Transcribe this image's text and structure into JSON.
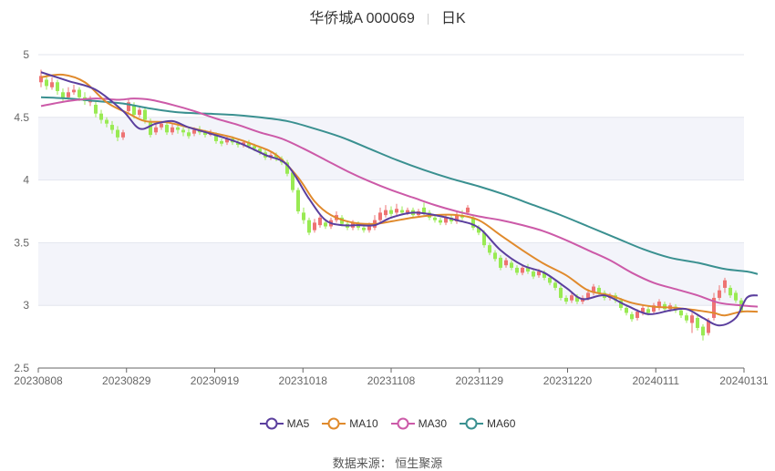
{
  "header": {
    "stock": "华侨城A 000069",
    "period": "日K"
  },
  "source": "数据来源： 恒生聚源",
  "chart_data": {
    "type": "candlestick",
    "y_ticks": [
      "5",
      "4.5",
      "4",
      "3.5",
      "3",
      "2.5"
    ],
    "ylim": [
      2.5,
      5
    ],
    "x_ticks": [
      "20230808",
      "20230829",
      "20230919",
      "20231018",
      "20231108",
      "20231129",
      "20231220",
      "20240111",
      "20240131"
    ],
    "legend": [
      {
        "name": "MA5",
        "color": "#5b3f9e"
      },
      {
        "name": "MA10",
        "color": "#e08a2c"
      },
      {
        "name": "MA30",
        "color": "#cc5aa8"
      },
      {
        "name": "MA60",
        "color": "#3a9090"
      }
    ],
    "candles": [
      [
        4.78,
        4.83,
        4.88,
        4.74
      ],
      [
        4.8,
        4.75,
        4.84,
        4.72
      ],
      [
        4.74,
        4.78,
        4.82,
        4.72
      ],
      [
        4.78,
        4.71,
        4.8,
        4.68
      ],
      [
        4.7,
        4.65,
        4.73,
        4.62
      ],
      [
        4.66,
        4.7,
        4.74,
        4.64
      ],
      [
        4.7,
        4.72,
        4.76,
        4.68
      ],
      [
        4.72,
        4.66,
        4.74,
        4.63
      ],
      [
        4.66,
        4.63,
        4.7,
        4.6
      ],
      [
        4.62,
        4.64,
        4.67,
        4.59
      ],
      [
        4.6,
        4.53,
        4.63,
        4.5
      ],
      [
        4.53,
        4.48,
        4.56,
        4.45
      ],
      [
        4.48,
        4.45,
        4.5,
        4.42
      ],
      [
        4.44,
        4.4,
        4.47,
        4.37
      ],
      [
        4.4,
        4.34,
        4.43,
        4.31
      ],
      [
        4.34,
        4.38,
        4.4,
        4.32
      ],
      [
        4.55,
        4.62,
        4.64,
        4.53
      ],
      [
        4.6,
        4.52,
        4.62,
        4.49
      ],
      [
        4.52,
        4.56,
        4.59,
        4.5
      ],
      [
        4.56,
        4.48,
        4.58,
        4.45
      ],
      [
        4.47,
        4.36,
        4.49,
        4.34
      ],
      [
        4.38,
        4.42,
        4.45,
        4.36
      ],
      [
        4.42,
        4.45,
        4.47,
        4.4
      ],
      [
        4.44,
        4.38,
        4.46,
        4.36
      ],
      [
        4.38,
        4.42,
        4.45,
        4.36
      ],
      [
        4.42,
        4.4,
        4.45,
        4.37
      ],
      [
        4.4,
        4.38,
        4.42,
        4.35
      ],
      [
        4.38,
        4.35,
        4.41,
        4.33
      ],
      [
        4.37,
        4.4,
        4.42,
        4.35
      ],
      [
        4.4,
        4.38,
        4.43,
        4.36
      ],
      [
        4.38,
        4.36,
        4.4,
        4.34
      ],
      [
        4.36,
        4.38,
        4.4,
        4.35
      ],
      [
        4.36,
        4.31,
        4.38,
        4.29
      ],
      [
        4.31,
        4.29,
        4.33,
        4.27
      ],
      [
        4.3,
        4.33,
        4.35,
        4.28
      ],
      [
        4.33,
        4.3,
        4.35,
        4.28
      ],
      [
        4.3,
        4.28,
        4.32,
        4.26
      ],
      [
        4.28,
        4.3,
        4.32,
        4.26
      ],
      [
        4.3,
        4.27,
        4.32,
        4.25
      ],
      [
        4.27,
        4.25,
        4.29,
        4.23
      ],
      [
        4.25,
        4.22,
        4.27,
        4.2
      ],
      [
        4.22,
        4.18,
        4.24,
        4.16
      ],
      [
        4.18,
        4.2,
        4.22,
        4.16
      ],
      [
        4.2,
        4.17,
        4.22,
        4.15
      ],
      [
        4.17,
        4.14,
        4.19,
        4.12
      ],
      [
        4.14,
        4.05,
        4.16,
        4.03
      ],
      [
        4.06,
        3.92,
        4.08,
        3.9
      ],
      [
        3.92,
        3.75,
        3.94,
        3.73
      ],
      [
        3.74,
        3.68,
        3.78,
        3.65
      ],
      [
        3.68,
        3.58,
        3.7,
        3.56
      ],
      [
        3.6,
        3.66,
        3.69,
        3.58
      ],
      [
        3.64,
        3.7,
        3.73,
        3.62
      ],
      [
        3.66,
        3.63,
        3.69,
        3.61
      ],
      [
        3.63,
        3.68,
        3.7,
        3.61
      ],
      [
        3.68,
        3.72,
        3.75,
        3.66
      ],
      [
        3.7,
        3.65,
        3.72,
        3.63
      ],
      [
        3.65,
        3.62,
        3.67,
        3.6
      ],
      [
        3.62,
        3.66,
        3.68,
        3.6
      ],
      [
        3.65,
        3.62,
        3.67,
        3.6
      ],
      [
        3.62,
        3.6,
        3.64,
        3.58
      ],
      [
        3.6,
        3.64,
        3.66,
        3.58
      ],
      [
        3.62,
        3.68,
        3.72,
        3.6
      ],
      [
        3.68,
        3.74,
        3.78,
        3.66
      ],
      [
        3.72,
        3.76,
        3.8,
        3.7
      ],
      [
        3.76,
        3.73,
        3.79,
        3.71
      ],
      [
        3.74,
        3.77,
        3.81,
        3.72
      ],
      [
        3.76,
        3.74,
        3.79,
        3.72
      ],
      [
        3.74,
        3.76,
        3.78,
        3.72
      ],
      [
        3.76,
        3.72,
        3.78,
        3.7
      ],
      [
        3.72,
        3.75,
        3.77,
        3.7
      ],
      [
        3.78,
        3.74,
        3.82,
        3.72
      ],
      [
        3.74,
        3.7,
        3.76,
        3.68
      ],
      [
        3.7,
        3.68,
        3.72,
        3.66
      ],
      [
        3.68,
        3.66,
        3.7,
        3.64
      ],
      [
        3.66,
        3.7,
        3.72,
        3.64
      ],
      [
        3.7,
        3.67,
        3.72,
        3.65
      ],
      [
        3.67,
        3.72,
        3.75,
        3.65
      ],
      [
        3.72,
        3.7,
        3.76,
        3.68
      ],
      [
        3.74,
        3.78,
        3.8,
        3.72
      ],
      [
        3.7,
        3.62,
        3.72,
        3.6
      ],
      [
        3.62,
        3.58,
        3.64,
        3.56
      ],
      [
        3.58,
        3.48,
        3.6,
        3.46
      ],
      [
        3.48,
        3.42,
        3.5,
        3.4
      ],
      [
        3.42,
        3.37,
        3.44,
        3.35
      ],
      [
        3.38,
        3.3,
        3.4,
        3.28
      ],
      [
        3.32,
        3.36,
        3.38,
        3.3
      ],
      [
        3.34,
        3.3,
        3.36,
        3.28
      ],
      [
        3.3,
        3.26,
        3.32,
        3.24
      ],
      [
        3.26,
        3.3,
        3.32,
        3.24
      ],
      [
        3.3,
        3.27,
        3.33,
        3.25
      ],
      [
        3.27,
        3.23,
        3.29,
        3.21
      ],
      [
        3.24,
        3.27,
        3.29,
        3.22
      ],
      [
        3.26,
        3.22,
        3.28,
        3.2
      ],
      [
        3.22,
        3.18,
        3.24,
        3.16
      ],
      [
        3.18,
        3.14,
        3.2,
        3.12
      ],
      [
        3.14,
        3.06,
        3.16,
        3.04
      ],
      [
        3.06,
        3.03,
        3.08,
        3.01
      ],
      [
        3.04,
        3.08,
        3.1,
        3.02
      ],
      [
        3.07,
        3.03,
        3.09,
        3.01
      ],
      [
        3.03,
        3.06,
        3.08,
        3.01
      ],
      [
        3.06,
        3.1,
        3.13,
        3.04
      ],
      [
        3.1,
        3.15,
        3.17,
        3.08
      ],
      [
        3.14,
        3.1,
        3.16,
        3.08
      ],
      [
        3.1,
        3.06,
        3.12,
        3.04
      ],
      [
        3.06,
        3.08,
        3.1,
        3.04
      ],
      [
        3.08,
        3.04,
        3.1,
        3.02
      ],
      [
        3.04,
        2.98,
        3.06,
        2.96
      ],
      [
        2.98,
        2.94,
        3.0,
        2.92
      ],
      [
        2.93,
        2.89,
        2.95,
        2.87
      ],
      [
        2.9,
        2.95,
        2.97,
        2.88
      ],
      [
        2.94,
        2.98,
        3.0,
        2.92
      ],
      [
        2.97,
        2.94,
        2.99,
        2.92
      ],
      [
        2.95,
        3.0,
        3.02,
        2.93
      ],
      [
        2.98,
        3.03,
        3.05,
        2.96
      ],
      [
        3.01,
        2.97,
        3.03,
        2.95
      ],
      [
        2.97,
        3.0,
        3.02,
        2.95
      ],
      [
        2.99,
        2.96,
        3.01,
        2.94
      ],
      [
        2.96,
        2.92,
        2.98,
        2.9
      ],
      [
        2.92,
        2.88,
        2.94,
        2.86
      ],
      [
        2.86,
        2.92,
        2.94,
        2.78
      ],
      [
        2.9,
        2.82,
        2.92,
        2.8
      ],
      [
        2.83,
        2.76,
        2.85,
        2.72
      ],
      [
        2.78,
        2.88,
        2.9,
        2.76
      ],
      [
        2.9,
        3.06,
        3.1,
        2.88
      ],
      [
        3.06,
        3.12,
        3.16,
        3.04
      ],
      [
        3.14,
        3.2,
        3.22,
        3.1
      ],
      [
        3.14,
        3.08,
        3.16,
        3.06
      ],
      [
        3.1,
        3.04,
        3.12,
        3.02
      ],
      [
        3.04,
        2.96,
        3.06,
        2.94
      ]
    ],
    "ma5": [
      [
        0,
        4.86
      ],
      [
        5,
        4.79
      ],
      [
        10,
        4.72
      ],
      [
        15,
        4.55
      ],
      [
        18,
        4.41
      ],
      [
        21,
        4.45
      ],
      [
        24,
        4.47
      ],
      [
        27,
        4.42
      ],
      [
        31,
        4.37
      ],
      [
        36,
        4.3
      ],
      [
        41,
        4.2
      ],
      [
        45,
        4.12
      ],
      [
        49,
        3.85
      ],
      [
        52,
        3.68
      ],
      [
        55,
        3.64
      ],
      [
        58,
        3.64
      ],
      [
        61,
        3.64
      ],
      [
        64,
        3.7
      ],
      [
        68,
        3.74
      ],
      [
        72,
        3.72
      ],
      [
        76,
        3.68
      ],
      [
        80,
        3.62
      ],
      [
        84,
        3.44
      ],
      [
        88,
        3.32
      ],
      [
        92,
        3.26
      ],
      [
        96,
        3.14
      ],
      [
        99,
        3.05
      ],
      [
        103,
        3.08
      ],
      [
        107,
        3.0
      ],
      [
        111,
        2.93
      ],
      [
        115,
        2.96
      ],
      [
        118,
        2.97
      ],
      [
        121,
        2.9
      ],
      [
        124,
        2.84
      ],
      [
        127,
        2.9
      ],
      [
        129,
        3.06
      ],
      [
        131,
        3.08
      ]
    ],
    "ma10": [
      [
        0,
        4.82
      ],
      [
        4,
        4.84
      ],
      [
        8,
        4.78
      ],
      [
        12,
        4.62
      ],
      [
        16,
        4.53
      ],
      [
        19,
        4.47
      ],
      [
        23,
        4.46
      ],
      [
        27,
        4.42
      ],
      [
        31,
        4.38
      ],
      [
        35,
        4.34
      ],
      [
        39,
        4.28
      ],
      [
        43,
        4.2
      ],
      [
        47,
        4.02
      ],
      [
        50,
        3.83
      ],
      [
        53,
        3.72
      ],
      [
        57,
        3.66
      ],
      [
        61,
        3.65
      ],
      [
        64,
        3.67
      ],
      [
        68,
        3.7
      ],
      [
        72,
        3.72
      ],
      [
        76,
        3.72
      ],
      [
        80,
        3.68
      ],
      [
        84,
        3.56
      ],
      [
        88,
        3.44
      ],
      [
        92,
        3.33
      ],
      [
        96,
        3.24
      ],
      [
        100,
        3.12
      ],
      [
        104,
        3.08
      ],
      [
        108,
        3.02
      ],
      [
        112,
        2.99
      ],
      [
        116,
        2.98
      ],
      [
        120,
        2.96
      ],
      [
        123,
        2.94
      ],
      [
        125,
        2.92
      ],
      [
        128,
        2.95
      ],
      [
        131,
        2.95
      ]
    ],
    "ma30": [
      [
        0,
        4.59
      ],
      [
        5,
        4.63
      ],
      [
        10,
        4.65
      ],
      [
        14,
        4.64
      ],
      [
        17,
        4.65
      ],
      [
        20,
        4.64
      ],
      [
        24,
        4.6
      ],
      [
        28,
        4.55
      ],
      [
        32,
        4.49
      ],
      [
        36,
        4.44
      ],
      [
        40,
        4.38
      ],
      [
        44,
        4.33
      ],
      [
        48,
        4.25
      ],
      [
        52,
        4.16
      ],
      [
        56,
        4.07
      ],
      [
        60,
        3.99
      ],
      [
        64,
        3.92
      ],
      [
        68,
        3.86
      ],
      [
        72,
        3.8
      ],
      [
        76,
        3.75
      ],
      [
        80,
        3.71
      ],
      [
        84,
        3.68
      ],
      [
        88,
        3.64
      ],
      [
        92,
        3.59
      ],
      [
        96,
        3.52
      ],
      [
        100,
        3.44
      ],
      [
        104,
        3.36
      ],
      [
        108,
        3.26
      ],
      [
        112,
        3.18
      ],
      [
        116,
        3.13
      ],
      [
        120,
        3.08
      ],
      [
        124,
        3.02
      ],
      [
        128,
        3.0
      ],
      [
        131,
        2.99
      ]
    ],
    "ma60": [
      [
        0,
        4.66
      ],
      [
        5,
        4.65
      ],
      [
        10,
        4.63
      ],
      [
        15,
        4.61
      ],
      [
        20,
        4.57
      ],
      [
        25,
        4.54
      ],
      [
        30,
        4.53
      ],
      [
        35,
        4.52
      ],
      [
        40,
        4.5
      ],
      [
        45,
        4.47
      ],
      [
        50,
        4.41
      ],
      [
        55,
        4.34
      ],
      [
        60,
        4.25
      ],
      [
        65,
        4.16
      ],
      [
        70,
        4.08
      ],
      [
        75,
        4.01
      ],
      [
        80,
        3.95
      ],
      [
        85,
        3.88
      ],
      [
        90,
        3.8
      ],
      [
        95,
        3.72
      ],
      [
        100,
        3.63
      ],
      [
        105,
        3.54
      ],
      [
        110,
        3.45
      ],
      [
        115,
        3.38
      ],
      [
        120,
        3.34
      ],
      [
        125,
        3.29
      ],
      [
        129,
        3.27
      ],
      [
        131,
        3.25
      ]
    ]
  }
}
